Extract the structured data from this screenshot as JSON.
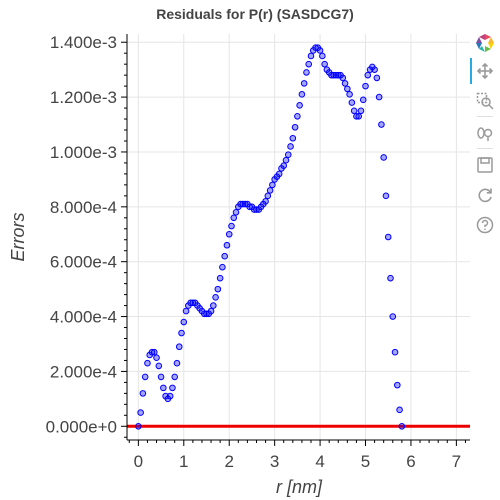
{
  "chart_data": {
    "type": "scatter",
    "title": "Residuals for P(r) (SASDCG7)",
    "xlabel": "r [nm]",
    "ylabel": "Errors",
    "xlim": [
      -0.25,
      7.3
    ],
    "ylim": [
      -5e-05,
      0.00143
    ],
    "x_ticks": [
      0,
      1,
      2,
      3,
      4,
      5,
      6,
      7
    ],
    "y_ticks": [
      0,
      0.0002,
      0.0004,
      0.0006,
      0.0008,
      0.001,
      0.0012,
      0.0014
    ],
    "y_tick_labels": [
      "0.000e+0",
      "2.000e-4",
      "4.000e-4",
      "6.000e-4",
      "8.000e-4",
      "1.000e-3",
      "1.200e-3",
      "1.400e-3"
    ],
    "grid": true,
    "series": [
      {
        "marker_color": "#0000ff",
        "points": [
          [
            0.0,
            0.0
          ],
          [
            0.05,
            5e-05
          ],
          [
            0.1,
            0.00012
          ],
          [
            0.15,
            0.00018
          ],
          [
            0.2,
            0.00023
          ],
          [
            0.25,
            0.00026
          ],
          [
            0.3,
            0.00027
          ],
          [
            0.35,
            0.00027
          ],
          [
            0.4,
            0.00025
          ],
          [
            0.45,
            0.00022
          ],
          [
            0.5,
            0.00018
          ],
          [
            0.55,
            0.00014
          ],
          [
            0.6,
            0.00011
          ],
          [
            0.65,
            0.0001
          ],
          [
            0.7,
            0.00011
          ],
          [
            0.75,
            0.00014
          ],
          [
            0.8,
            0.00018
          ],
          [
            0.85,
            0.00023
          ],
          [
            0.9,
            0.00029
          ],
          [
            0.95,
            0.00034
          ],
          [
            1.0,
            0.00038
          ],
          [
            1.05,
            0.00042
          ],
          [
            1.1,
            0.00044
          ],
          [
            1.15,
            0.00045
          ],
          [
            1.2,
            0.00045
          ],
          [
            1.25,
            0.00045
          ],
          [
            1.3,
            0.00044
          ],
          [
            1.35,
            0.00043
          ],
          [
            1.4,
            0.00042
          ],
          [
            1.45,
            0.00041
          ],
          [
            1.5,
            0.00041
          ],
          [
            1.55,
            0.00041
          ],
          [
            1.6,
            0.00042
          ],
          [
            1.65,
            0.00044
          ],
          [
            1.7,
            0.00047
          ],
          [
            1.75,
            0.0005
          ],
          [
            1.8,
            0.00054
          ],
          [
            1.85,
            0.00058
          ],
          [
            1.9,
            0.00062
          ],
          [
            1.95,
            0.00066
          ],
          [
            2.0,
            0.0007
          ],
          [
            2.05,
            0.00073
          ],
          [
            2.1,
            0.00076
          ],
          [
            2.15,
            0.00078
          ],
          [
            2.2,
            0.0008
          ],
          [
            2.25,
            0.00081
          ],
          [
            2.3,
            0.00081
          ],
          [
            2.35,
            0.00081
          ],
          [
            2.4,
            0.00081
          ],
          [
            2.45,
            0.0008
          ],
          [
            2.5,
            0.0008
          ],
          [
            2.55,
            0.00079
          ],
          [
            2.6,
            0.00079
          ],
          [
            2.65,
            0.00079
          ],
          [
            2.7,
            0.0008
          ],
          [
            2.75,
            0.00081
          ],
          [
            2.8,
            0.00082
          ],
          [
            2.85,
            0.00084
          ],
          [
            2.9,
            0.00086
          ],
          [
            2.95,
            0.00088
          ],
          [
            3.0,
            0.0009
          ],
          [
            3.05,
            0.00091
          ],
          [
            3.1,
            0.00092
          ],
          [
            3.15,
            0.00094
          ],
          [
            3.2,
            0.00095
          ],
          [
            3.25,
            0.00097
          ],
          [
            3.3,
            0.00099
          ],
          [
            3.35,
            0.00102
          ],
          [
            3.4,
            0.00105
          ],
          [
            3.45,
            0.00109
          ],
          [
            3.5,
            0.00113
          ],
          [
            3.55,
            0.00117
          ],
          [
            3.6,
            0.00121
          ],
          [
            3.65,
            0.00125
          ],
          [
            3.7,
            0.00129
          ],
          [
            3.75,
            0.00132
          ],
          [
            3.8,
            0.00135
          ],
          [
            3.85,
            0.00137
          ],
          [
            3.9,
            0.00138
          ],
          [
            3.95,
            0.00138
          ],
          [
            4.0,
            0.00137
          ],
          [
            4.05,
            0.00135
          ],
          [
            4.1,
            0.00132
          ],
          [
            4.15,
            0.0013
          ],
          [
            4.2,
            0.00129
          ],
          [
            4.25,
            0.00128
          ],
          [
            4.3,
            0.00128
          ],
          [
            4.35,
            0.00128
          ],
          [
            4.4,
            0.00128
          ],
          [
            4.45,
            0.00128
          ],
          [
            4.5,
            0.00127
          ],
          [
            4.55,
            0.00125
          ],
          [
            4.6,
            0.00123
          ],
          [
            4.65,
            0.00121
          ],
          [
            4.7,
            0.00118
          ],
          [
            4.75,
            0.00115
          ],
          [
            4.8,
            0.00113
          ],
          [
            4.85,
            0.00113
          ],
          [
            4.9,
            0.00115
          ],
          [
            4.95,
            0.00119
          ],
          [
            5.0,
            0.00124
          ],
          [
            5.05,
            0.00128
          ],
          [
            5.1,
            0.0013
          ],
          [
            5.15,
            0.00131
          ],
          [
            5.2,
            0.0013
          ],
          [
            5.25,
            0.00127
          ],
          [
            5.3,
            0.0012
          ],
          [
            5.35,
            0.0011
          ],
          [
            5.4,
            0.00098
          ],
          [
            5.45,
            0.00084
          ],
          [
            5.5,
            0.00069
          ],
          [
            5.55,
            0.00054
          ],
          [
            5.6,
            0.0004
          ],
          [
            5.65,
            0.00027
          ],
          [
            5.7,
            0.00015
          ],
          [
            5.75,
            6e-05
          ],
          [
            5.8,
            0.0
          ]
        ]
      }
    ],
    "reference_line": {
      "y": 0,
      "color": "#ee0000"
    }
  },
  "toolbar": {
    "icons": [
      "bokeh-logo-icon",
      "pan-icon",
      "box-zoom-icon",
      "wheel-zoom-icon",
      "save-icon",
      "reset-icon",
      "help-icon"
    ]
  }
}
